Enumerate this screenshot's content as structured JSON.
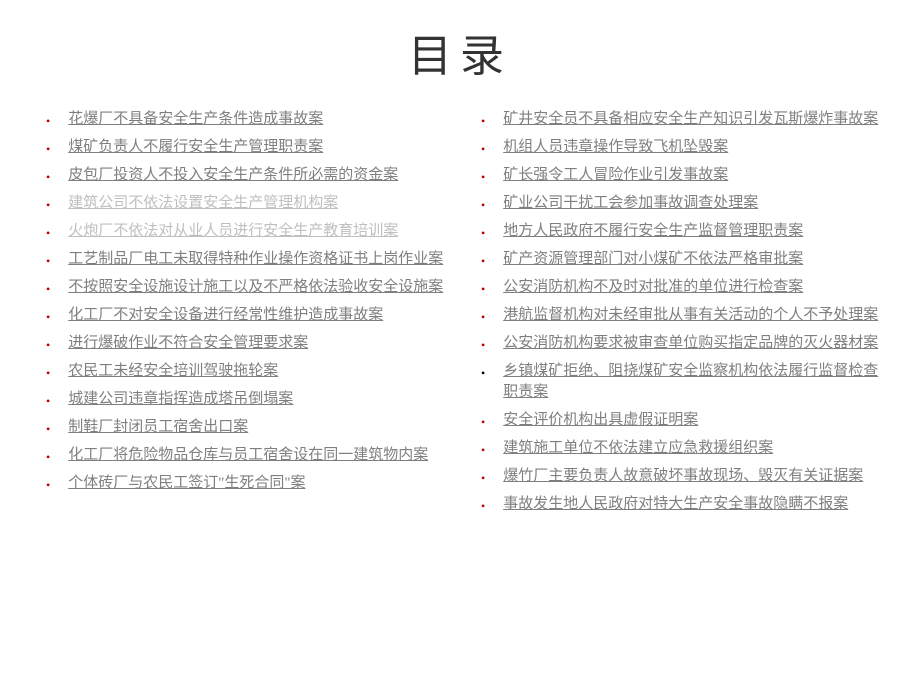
{
  "title": "目录",
  "colors": {
    "background": "#ffffff",
    "title_color": "#333333",
    "link_color": "#7f7f7f",
    "link_faded_color": "#bfbfbf",
    "bullet_red": "#c00000",
    "bullet_black": "#000000"
  },
  "typography": {
    "title_fontsize": 44,
    "link_fontsize": 15,
    "font_family": "SimSun"
  },
  "left_items": [
    {
      "text": "花爆厂不具备安全生产条件造成事故案",
      "bullet": "red",
      "faded": false
    },
    {
      "text": " 煤矿负责人不履行安全生产管理职责案",
      "bullet": "red",
      "faded": false
    },
    {
      "text": "皮包厂投资人不投入安全生产条件所必需的资金案",
      "bullet": "red",
      "faded": false
    },
    {
      "text": " 建筑公司不依法设置安全生产管理机构案",
      "bullet": "red",
      "faded": true
    },
    {
      "text": " 火炮厂不依法对从业人员进行安全生产教育培训案",
      "bullet": "red",
      "faded": true
    },
    {
      "text": " 工艺制品厂电工未取得特种作业操作资格证书上岗作业案",
      "bullet": "red",
      "faded": false
    },
    {
      "text": " 不按照安全设施设计施工以及不严格依法验收安全设施案",
      "bullet": "red",
      "faded": false
    },
    {
      "text": "化工厂不对安全设备进行经常性维护造成事故案",
      "bullet": "red",
      "faded": false
    },
    {
      "text": "进行爆破作业不符合安全管理要求案",
      "bullet": "red",
      "faded": false
    },
    {
      "text": "农民工未经安全培训驾驶拖轮案",
      "bullet": "red",
      "faded": false
    },
    {
      "text": "城建公司违章指挥造成塔吊倒塌案",
      "bullet": "red",
      "faded": false
    },
    {
      "text": "制鞋厂封闭员工宿舍出口案",
      "bullet": "red",
      "faded": false
    },
    {
      "text": "化工厂将危险物品仓库与员工宿舍设在同一建筑物内案",
      "bullet": "red",
      "faded": false
    },
    {
      "text": "个体砖厂与农民工签订\"生死合同\"案",
      "bullet": "red",
      "faded": false
    }
  ],
  "right_items": [
    {
      "text": "矿井安全员不具备相应安全生产知识引发瓦斯爆炸事故案",
      "bullet": "red",
      "faded": false
    },
    {
      "text": "机组人员违章操作导致飞机坠毁案",
      "bullet": "red",
      "faded": false
    },
    {
      "text": "矿长强令工人冒险作业引发事故案",
      "bullet": "red",
      "faded": false
    },
    {
      "text": "矿业公司干扰工会参加事故调查处理案",
      "bullet": "red",
      "faded": false
    },
    {
      "text": "地方人民政府不履行安全生产监督管理职责案",
      "bullet": "red",
      "faded": false
    },
    {
      "text": "矿产资源管理部门对小煤矿不依法严格审批案",
      "bullet": "red",
      "faded": false
    },
    {
      "text": "公安消防机构不及时对批准的单位进行检查案",
      "bullet": "red",
      "faded": false
    },
    {
      "text": "港航监督机构对未经审批从事有关活动的个人不予处理案",
      "bullet": "red",
      "faded": false
    },
    {
      "text": "公安消防机构要求被审查单位购买指定品牌的灭火器材案",
      "bullet": "red",
      "faded": false
    },
    {
      "text": "乡镇煤矿拒绝、阻挠煤矿安全监察机构依法履行监督检查职责案",
      "bullet": "black",
      "faded": false
    },
    {
      "text": "安全评价机构出具虚假证明案",
      "bullet": "red",
      "faded": false
    },
    {
      "text": "建筑施工单位不依法建立应急救援组织案",
      "bullet": "red",
      "faded": false
    },
    {
      "text": "爆竹厂主要负责人故意破坏事故现场、毁灭有关证据案",
      "bullet": "red",
      "faded": false
    },
    {
      "text": "事故发生地人民政府对特大生产安全事故隐瞒不报案",
      "bullet": "red",
      "faded": false
    }
  ]
}
